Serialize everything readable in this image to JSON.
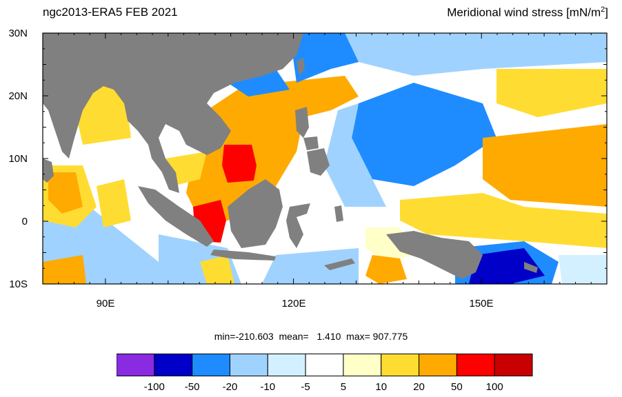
{
  "header": {
    "title_left": "ngc2013-ERA5  FEB 2021",
    "title_right_text": "Meridional wind stress [mN/m",
    "title_right_sup": "2",
    "title_right_close": "]"
  },
  "axes": {
    "lat_labels": [
      "30N",
      "20N",
      "10N",
      "0",
      "10S"
    ],
    "lon_labels": [
      "90E",
      "120E",
      "150E"
    ]
  },
  "stats": {
    "text": "min=-210.603  mean=   1.410  max= 907.775"
  },
  "colorbar": {
    "colors": [
      "#8a2be2",
      "#0000c8",
      "#1e8cff",
      "#a0d2ff",
      "#d2f0ff",
      "#ffffff",
      "#ffffc8",
      "#ffdc32",
      "#ffaa00",
      "#ff0000",
      "#c80000"
    ],
    "labels": [
      "-100",
      "-50",
      "-20",
      "-10",
      "-5",
      "5",
      "10",
      "20",
      "50",
      "100"
    ]
  },
  "colors": {
    "land": "#808080",
    "frame": "#000000"
  }
}
